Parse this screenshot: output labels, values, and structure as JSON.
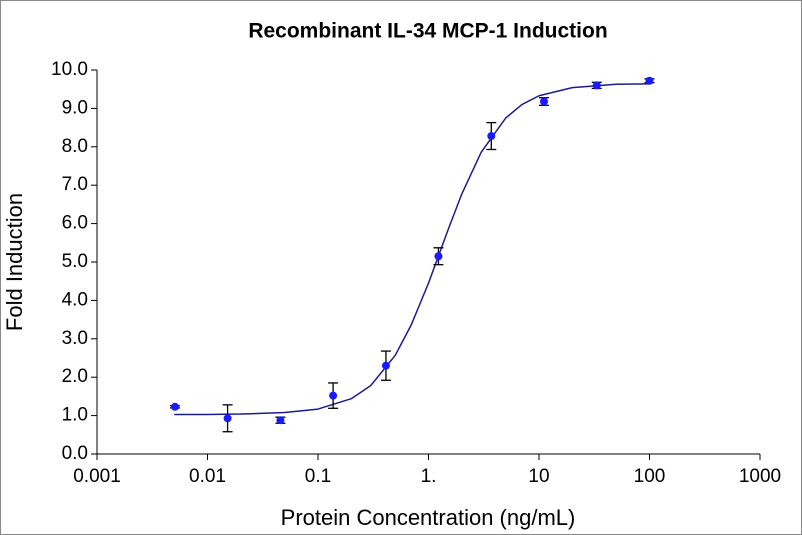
{
  "chart_data": {
    "type": "scatter",
    "title": "Recombinant IL-34 MCP-1 Induction",
    "x_label": "Protein Concentration (ng/mL)",
    "y_label": "Fold Induction",
    "x_scale": "log",
    "xlim": [
      0.001,
      1000
    ],
    "xticks": [
      0.001,
      0.01,
      0.1,
      {
        "value": 1,
        "label": "1."
      },
      10,
      100,
      1000
    ],
    "ylim": [
      0,
      10
    ],
    "yticks": [
      {
        "value": 0,
        "label": "0.0"
      },
      {
        "value": 1,
        "label": "1.0"
      },
      {
        "value": 2,
        "label": "2.0"
      },
      {
        "value": 3,
        "label": "3.0"
      },
      {
        "value": 4,
        "label": "4.0"
      },
      {
        "value": 5,
        "label": "5.0"
      },
      {
        "value": 6,
        "label": "6.0"
      },
      {
        "value": 7,
        "label": "7.0"
      },
      {
        "value": 8,
        "label": "8.0"
      },
      {
        "value": 9,
        "label": "9.0"
      },
      {
        "value": 10,
        "label": "10.0"
      }
    ],
    "points": {
      "color": "#1a1aff",
      "x": [
        0.00508,
        0.0152,
        0.0457,
        0.137,
        0.412,
        1.23,
        3.7,
        11.1,
        33.3,
        100
      ],
      "values": [
        1.23,
        0.93,
        0.88,
        1.52,
        2.3,
        5.15,
        8.28,
        9.18,
        9.6,
        9.72
      ],
      "errors": [
        0.03,
        0.35,
        0.08,
        0.33,
        0.38,
        0.22,
        0.35,
        0.1,
        0.08,
        0.05
      ]
    },
    "fit": {
      "color": "#1c1c8c",
      "x": [
        0.005,
        0.01,
        0.02,
        0.05,
        0.1,
        0.2,
        0.3,
        0.5,
        0.7,
        1,
        1.5,
        2,
        3,
        5,
        7,
        10,
        20,
        50,
        100
      ],
      "values": [
        1.03,
        1.03,
        1.04,
        1.08,
        1.17,
        1.44,
        1.78,
        2.57,
        3.37,
        4.45,
        5.83,
        6.77,
        7.86,
        8.75,
        9.1,
        9.33,
        9.54,
        9.63,
        9.64
      ]
    }
  }
}
